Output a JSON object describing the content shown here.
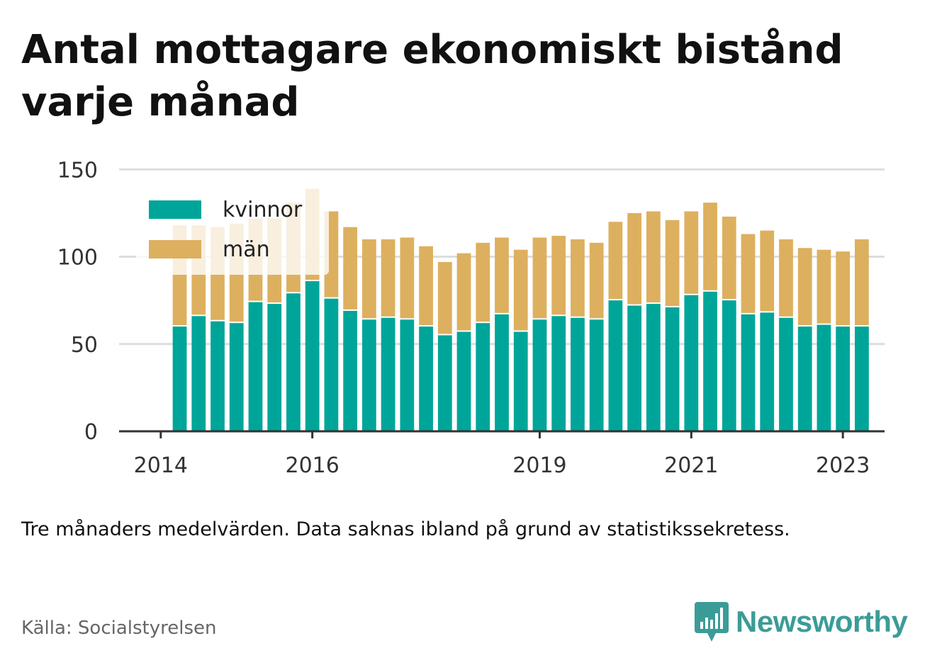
{
  "title": "Antal mottagare ekonomiskt bistånd varje månad",
  "note": "Tre månaders medelvärden. Data saknas ibland på grund av statistikssekretess.",
  "source": "Källa: Socialstyrelsen",
  "brand": {
    "name": "Newsworthy",
    "icon": "newsworthy-logo-icon",
    "color": "#3b9c97"
  },
  "colors": {
    "kvinnor": "#00a59a",
    "man": "#ddb05f",
    "grid": "#dddddd",
    "axis": "#333333"
  },
  "chart_data": {
    "type": "bar",
    "stacked": true,
    "x_tick_labels": [
      "2014",
      "2016",
      "2019",
      "2021",
      "2023"
    ],
    "x_tick_positions": [
      0,
      2,
      5,
      7,
      9
    ],
    "x_domain": [
      -0.55,
      9.55
    ],
    "categories": [
      "2014-Q2",
      "2014-Q3",
      "2014-Q4",
      "2015-Q1",
      "2015-Q2",
      "2015-Q3",
      "2015-Q4",
      "2016-Q1",
      "2016-Q2",
      "2016-Q3",
      "2016-Q4",
      "2017-Q1",
      "2017-Q2",
      "2017-Q3",
      "2017-Q4",
      "2018-Q1",
      "2018-Q2",
      "2018-Q3",
      "2018-Q4",
      "2019-Q1",
      "2019-Q2",
      "2019-Q3",
      "2019-Q4",
      "2020-Q1",
      "2020-Q2",
      "2020-Q3",
      "2020-Q4",
      "2021-Q1",
      "2021-Q2",
      "2021-Q3",
      "2021-Q4",
      "2022-Q1",
      "2022-Q2",
      "2022-Q3",
      "2022-Q4",
      "2023-Q1",
      "2023-Q2"
    ],
    "x": [
      0.25,
      0.5,
      0.75,
      1.0,
      1.25,
      1.5,
      1.75,
      2.0,
      2.25,
      2.5,
      2.75,
      3.0,
      3.25,
      3.5,
      3.75,
      4.0,
      4.25,
      4.5,
      4.75,
      5.0,
      5.25,
      5.5,
      5.75,
      6.0,
      6.25,
      6.5,
      6.75,
      7.0,
      7.25,
      7.5,
      7.75,
      8.0,
      8.25,
      8.5,
      8.75,
      9.0,
      9.25
    ],
    "series": [
      {
        "name": "kvinnor",
        "values": [
          60,
          66,
          63,
          62,
          74,
          73,
          79,
          86,
          76,
          69,
          64,
          65,
          64,
          60,
          55,
          57,
          62,
          67,
          57,
          64,
          66,
          65,
          64,
          75,
          72,
          73,
          71,
          78,
          80,
          75,
          67,
          68,
          65,
          60,
          61,
          60,
          60
        ]
      },
      {
        "name": "män",
        "values": [
          58,
          52,
          54,
          57,
          48,
          49,
          52,
          53,
          50,
          48,
          46,
          45,
          47,
          46,
          42,
          45,
          46,
          44,
          47,
          47,
          46,
          45,
          44,
          45,
          53,
          53,
          50,
          48,
          51,
          48,
          46,
          47,
          45,
          45,
          43,
          43,
          50
        ]
      }
    ],
    "ylim": [
      0,
      170
    ],
    "yticks": [
      0,
      50,
      100,
      150
    ],
    "grid": true,
    "legend": "top-left"
  }
}
